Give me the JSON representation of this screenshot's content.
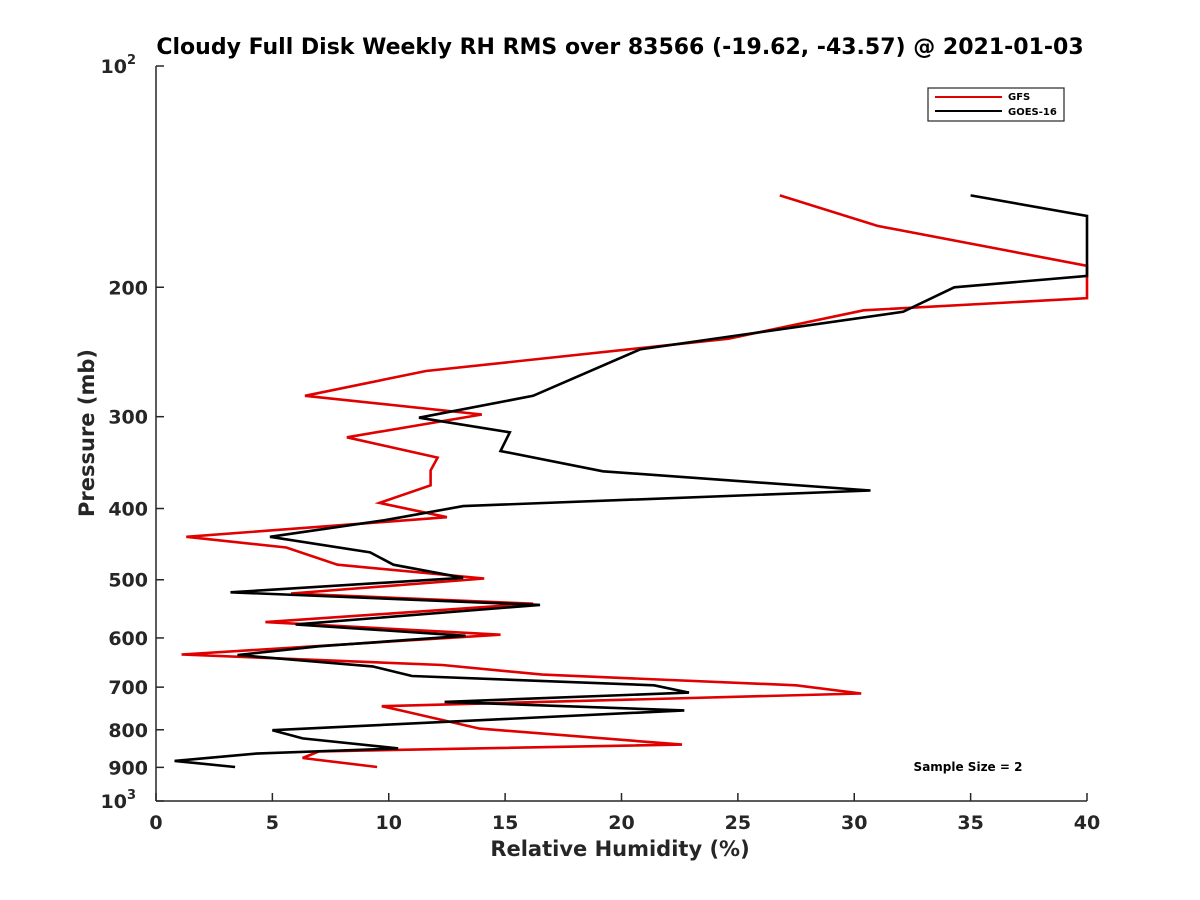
{
  "chart_data": {
    "type": "line",
    "title": "Cloudy Full Disk Weekly RH RMS over 83566 (-19.62, -43.57) @ 2021-01-03",
    "xlabel": "Relative Humidity (%)",
    "ylabel": "Pressure (mb)",
    "xlim": [
      0,
      40
    ],
    "ylim": [
      100,
      1000
    ],
    "y_scale": "log",
    "y_reversed": true,
    "grid": false,
    "legend_position": "top-right",
    "x_ticks": [
      "0",
      "5",
      "10",
      "15",
      "20",
      "25",
      "30",
      "35",
      "40"
    ],
    "y_ticks": [
      {
        "value": 100,
        "label": "10",
        "sup": "2"
      },
      {
        "value": 200,
        "label": "200",
        "sup": ""
      },
      {
        "value": 300,
        "label": "300",
        "sup": ""
      },
      {
        "value": 400,
        "label": "400",
        "sup": ""
      },
      {
        "value": 500,
        "label": "500",
        "sup": ""
      },
      {
        "value": 600,
        "label": "600",
        "sup": ""
      },
      {
        "value": 700,
        "label": "700",
        "sup": ""
      },
      {
        "value": 800,
        "label": "800",
        "sup": ""
      },
      {
        "value": 900,
        "label": "900",
        "sup": ""
      },
      {
        "value": 1000,
        "label": "10",
        "sup": "3"
      }
    ],
    "annotation": "Sample Size = 2",
    "series": [
      {
        "name": "GFS",
        "color": "#e00000",
        "points": [
          [
            26.8,
            150
          ],
          [
            31.0,
            165
          ],
          [
            40.0,
            187
          ],
          [
            40.0,
            207
          ],
          [
            30.4,
            215
          ],
          [
            24.6,
            235
          ],
          [
            11.6,
            260
          ],
          [
            6.4,
            281
          ],
          [
            14.0,
            298
          ],
          [
            8.2,
            320
          ],
          [
            12.1,
            341
          ],
          [
            11.8,
            355
          ],
          [
            11.8,
            372
          ],
          [
            9.6,
            393
          ],
          [
            12.5,
            411
          ],
          [
            1.3,
            437
          ],
          [
            5.6,
            452
          ],
          [
            7.8,
            477
          ],
          [
            14.1,
            498
          ],
          [
            5.8,
            522
          ],
          [
            16.2,
            539
          ],
          [
            4.7,
            571
          ],
          [
            14.8,
            594
          ],
          [
            1.1,
            632
          ],
          [
            12.3,
            653
          ],
          [
            16.6,
            673
          ],
          [
            27.5,
            696
          ],
          [
            30.3,
            714
          ],
          [
            9.7,
            743
          ],
          [
            10.6,
            754
          ],
          [
            13.9,
            797
          ],
          [
            22.6,
            838
          ],
          [
            7.0,
            856
          ],
          [
            6.3,
            874
          ],
          [
            9.5,
            899
          ]
        ]
      },
      {
        "name": "GOES-16",
        "color": "#000000",
        "points": [
          [
            35.0,
            150
          ],
          [
            40.0,
            160
          ],
          [
            40.0,
            193
          ],
          [
            34.3,
            200
          ],
          [
            32.1,
            216
          ],
          [
            20.8,
            243
          ],
          [
            16.2,
            281
          ],
          [
            11.3,
            301
          ],
          [
            15.2,
            315
          ],
          [
            14.8,
            334
          ],
          [
            19.2,
            356
          ],
          [
            30.7,
            378
          ],
          [
            13.2,
            397
          ],
          [
            9.8,
            415
          ],
          [
            4.9,
            437
          ],
          [
            9.2,
            459
          ],
          [
            10.2,
            477
          ],
          [
            13.2,
            497
          ],
          [
            3.2,
            520
          ],
          [
            16.5,
            541
          ],
          [
            6.0,
            575
          ],
          [
            13.3,
            596
          ],
          [
            7.0,
            616
          ],
          [
            3.5,
            633
          ],
          [
            9.3,
            656
          ],
          [
            11.0,
            676
          ],
          [
            21.4,
            696
          ],
          [
            22.9,
            712
          ],
          [
            12.4,
            733
          ],
          [
            22.7,
            753
          ],
          [
            5.0,
            801
          ],
          [
            6.3,
            822
          ],
          [
            10.4,
            848
          ],
          [
            4.3,
            862
          ],
          [
            0.8,
            882
          ],
          [
            3.4,
            899
          ]
        ]
      }
    ]
  }
}
